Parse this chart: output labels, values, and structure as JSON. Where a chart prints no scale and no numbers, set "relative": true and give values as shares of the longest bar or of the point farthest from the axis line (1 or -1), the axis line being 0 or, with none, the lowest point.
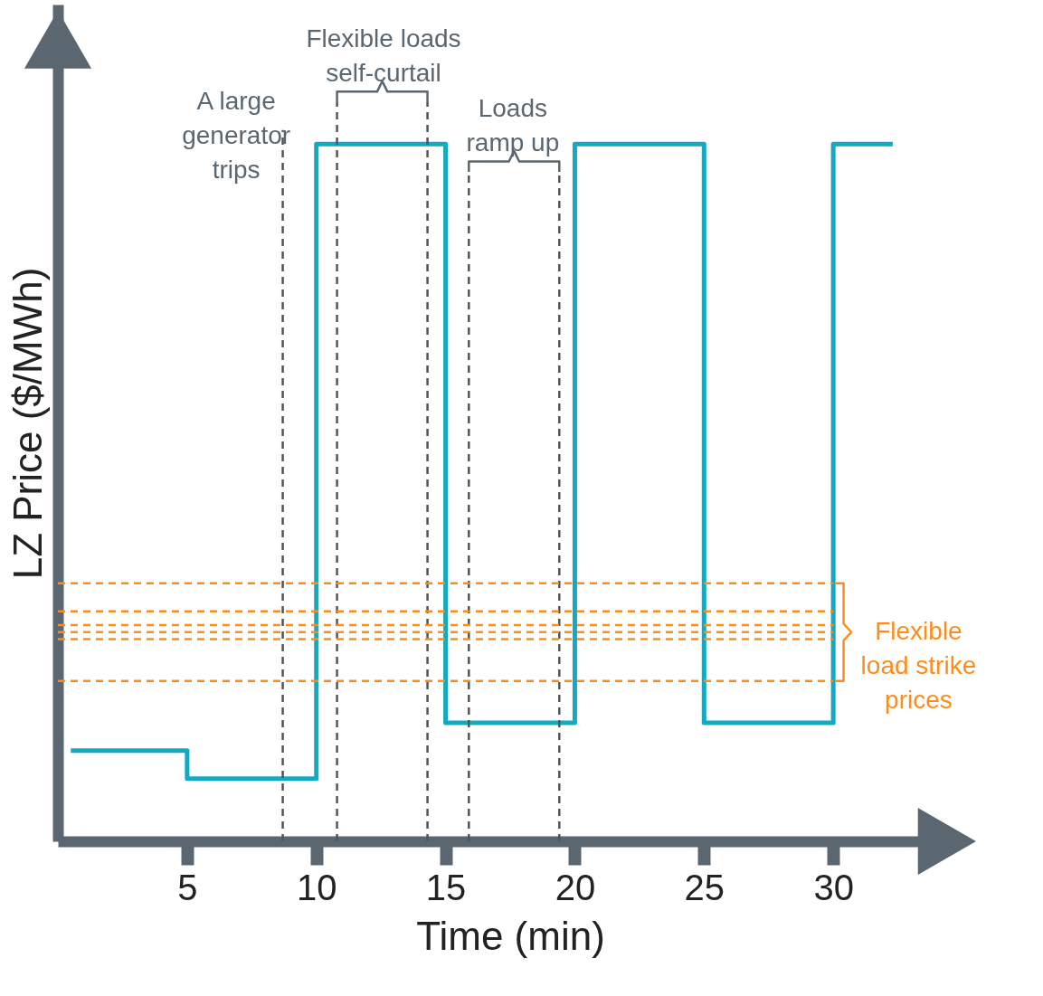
{
  "chart_data": {
    "type": "step",
    "relative": true,
    "xlabel": "Time (min)",
    "ylabel": "LZ Price ($/MWh)",
    "xlim": [
      0,
      35
    ],
    "xticks": [
      5,
      10,
      15,
      20,
      25,
      30
    ],
    "series": [
      {
        "color": "#14a9c3",
        "x": [
          0.5,
          5,
          10,
          15,
          20,
          25,
          30,
          32.3
        ],
        "values": [
          0.13,
          0.09,
          1,
          0.17,
          1,
          0.17,
          1,
          1
        ]
      }
    ],
    "ref_lines": [
      {
        "axis": "x",
        "value": 8.7,
        "color": "#555555",
        "line_style": "dashed"
      },
      {
        "axis": "x",
        "value": 10.8,
        "color": "#555555",
        "line_style": "dashed"
      },
      {
        "axis": "x",
        "value": 14.3,
        "color": "#555555",
        "line_style": "dashed"
      },
      {
        "axis": "x",
        "value": 15.9,
        "color": "#555555",
        "line_style": "dashed"
      },
      {
        "axis": "x",
        "value": 19.4,
        "color": "#555555",
        "line_style": "dashed"
      },
      {
        "axis": "y",
        "value": 0.37,
        "color": "#ff8c1a",
        "line_style": "dashed"
      },
      {
        "axis": "y",
        "value": 0.33,
        "color": "#ff8c1a",
        "line_style": "dashed"
      },
      {
        "axis": "y",
        "value": 0.31,
        "color": "#ff8c1a",
        "line_style": "dashed"
      },
      {
        "axis": "y",
        "value": 0.3,
        "color": "#ff8c1a",
        "line_style": "dashed"
      },
      {
        "axis": "y",
        "value": 0.29,
        "color": "#ff8c1a",
        "line_style": "dashed"
      },
      {
        "axis": "y",
        "value": 0.23,
        "color": "#ff8c1a",
        "line_style": "dashed"
      }
    ],
    "annotations": [
      "A large\ngenerator\ntrips",
      "Flexible loads\nself-curtail",
      "Loads\nramp up",
      "Flexible\nload strike\nprices"
    ]
  }
}
